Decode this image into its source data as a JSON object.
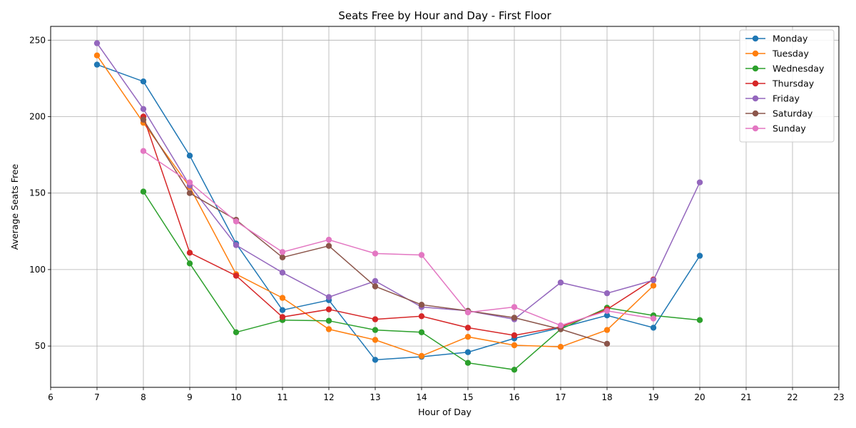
{
  "chart_data": {
    "type": "line",
    "title": "Seats Free by Hour and Day - First Floor",
    "xlabel": "Hour of Day",
    "ylabel": "Average Seats Free",
    "xlim": [
      6,
      23
    ],
    "ylim": [
      23,
      259
    ],
    "xticks": [
      6,
      7,
      8,
      9,
      10,
      11,
      12,
      13,
      14,
      15,
      16,
      17,
      18,
      19,
      20,
      21,
      22,
      23
    ],
    "yticks": [
      50,
      100,
      150,
      200,
      250
    ],
    "grid": true,
    "legend_position": "top-right",
    "series": [
      {
        "name": "Monday",
        "color": "#1f77b4",
        "points": [
          [
            7,
            234
          ],
          [
            8,
            223
          ],
          [
            9,
            174.5
          ],
          [
            10,
            117
          ],
          [
            11,
            73.5
          ],
          [
            12,
            80
          ],
          [
            13,
            41
          ],
          [
            14,
            43
          ],
          [
            15,
            46
          ],
          [
            16,
            55
          ],
          [
            17,
            62
          ],
          [
            18,
            70
          ],
          [
            19,
            62
          ],
          [
            20,
            109
          ]
        ]
      },
      {
        "name": "Tuesday",
        "color": "#ff7f0e",
        "points": [
          [
            7,
            240
          ],
          [
            8,
            196
          ],
          [
            9,
            154
          ],
          [
            10,
            97
          ],
          [
            11,
            81.5
          ],
          [
            12,
            61
          ],
          [
            13,
            54
          ],
          [
            14,
            43.5
          ],
          [
            15,
            56
          ],
          [
            16,
            50.5
          ],
          [
            17,
            49.5
          ],
          [
            18,
            60.5
          ],
          [
            19,
            89.5
          ]
        ]
      },
      {
        "name": "Wednesday",
        "color": "#2ca02c",
        "points": [
          [
            8,
            151
          ],
          [
            9,
            104
          ],
          [
            10,
            59
          ],
          [
            11,
            67
          ],
          [
            12,
            66.5
          ],
          [
            13,
            60.5
          ],
          [
            14,
            59
          ],
          [
            15,
            39
          ],
          [
            16,
            34.5
          ],
          [
            17,
            61
          ],
          [
            18,
            75
          ],
          [
            19,
            70
          ],
          [
            20,
            67
          ]
        ]
      },
      {
        "name": "Thursday",
        "color": "#d62728",
        "points": [
          [
            8,
            200
          ],
          [
            9,
            111
          ],
          [
            10,
            96
          ],
          [
            11,
            69
          ],
          [
            12,
            74
          ],
          [
            13,
            67.5
          ],
          [
            14,
            69.5
          ],
          [
            15,
            62
          ],
          [
            16,
            57
          ],
          [
            17,
            62.5
          ],
          [
            18,
            74
          ],
          [
            19,
            93.5
          ]
        ]
      },
      {
        "name": "Friday",
        "color": "#9467bd",
        "points": [
          [
            7,
            248
          ],
          [
            8,
            205
          ],
          [
            9,
            155
          ],
          [
            10,
            116
          ],
          [
            11,
            98
          ],
          [
            12,
            82
          ],
          [
            13,
            92.5
          ],
          [
            14,
            75.5
          ],
          [
            15,
            73
          ],
          [
            16,
            67.5
          ],
          [
            17,
            91.5
          ],
          [
            18,
            84.5
          ],
          [
            19,
            93
          ],
          [
            20,
            157
          ]
        ]
      },
      {
        "name": "Saturday",
        "color": "#8c564b",
        "points": [
          [
            8,
            198
          ],
          [
            9,
            150
          ],
          [
            10,
            132.5
          ],
          [
            11,
            108
          ],
          [
            12,
            115.5
          ],
          [
            13,
            89
          ],
          [
            14,
            77
          ],
          [
            15,
            73
          ],
          [
            16,
            68.5
          ],
          [
            17,
            61
          ],
          [
            18,
            51.5
          ]
        ]
      },
      {
        "name": "Sunday",
        "color": "#e377c2",
        "points": [
          [
            8,
            177.5
          ],
          [
            9,
            157
          ],
          [
            10,
            131.5
          ],
          [
            11,
            111.5
          ],
          [
            12,
            119.5
          ],
          [
            13,
            110.5
          ],
          [
            14,
            109.5
          ],
          [
            15,
            72
          ],
          [
            16,
            75.5
          ],
          [
            17,
            63.5
          ],
          [
            18,
            73
          ],
          [
            19,
            68
          ]
        ]
      }
    ]
  }
}
